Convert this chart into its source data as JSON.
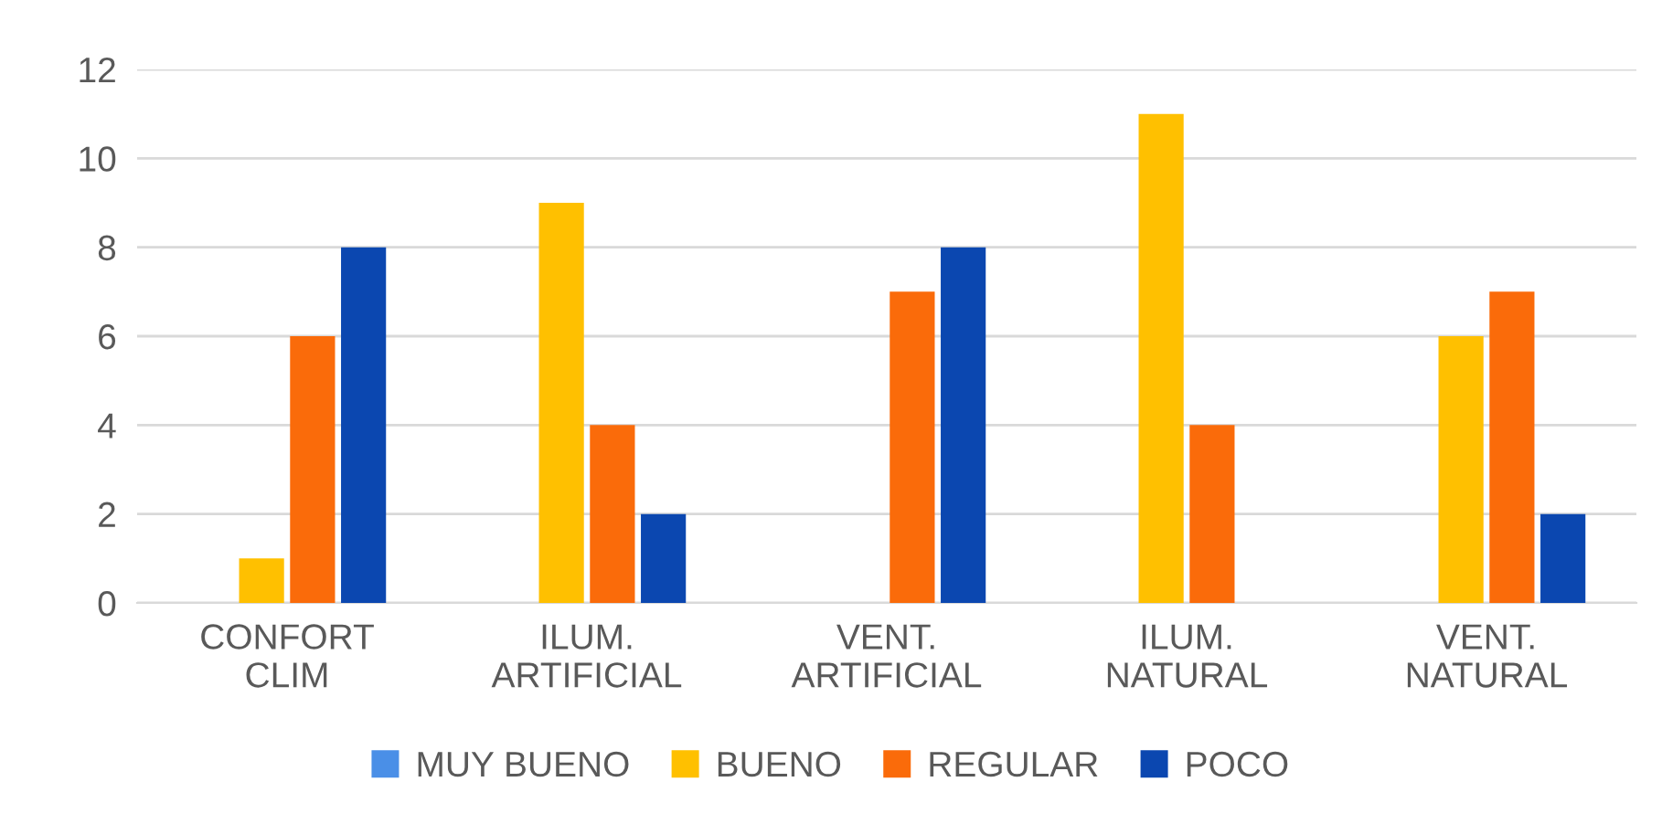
{
  "chart_data": {
    "type": "bar",
    "categories": [
      "CONFORT\nCLIM",
      "ILUM.\nARTIFICIAL",
      "VENT.\nARTIFICIAL",
      "ILUM.\nNATURAL",
      "VENT.\nNATURAL"
    ],
    "series": [
      {
        "name": "MUY BUENO",
        "color": "#4a8fe7",
        "values": [
          0,
          0,
          0,
          0,
          0
        ]
      },
      {
        "name": "BUENO",
        "color": "#ffc000",
        "values": [
          1,
          9,
          0,
          11,
          6
        ]
      },
      {
        "name": "REGULAR",
        "color": "#fa6b0a",
        "values": [
          6,
          4,
          7,
          4,
          7
        ]
      },
      {
        "name": "POCO",
        "color": "#0b47b0",
        "values": [
          8,
          2,
          8,
          0,
          2
        ]
      }
    ],
    "ylim": [
      0,
      12
    ],
    "yticks": [
      0,
      2,
      4,
      6,
      8,
      10,
      12
    ],
    "grid": "y",
    "legend": "bottom"
  }
}
